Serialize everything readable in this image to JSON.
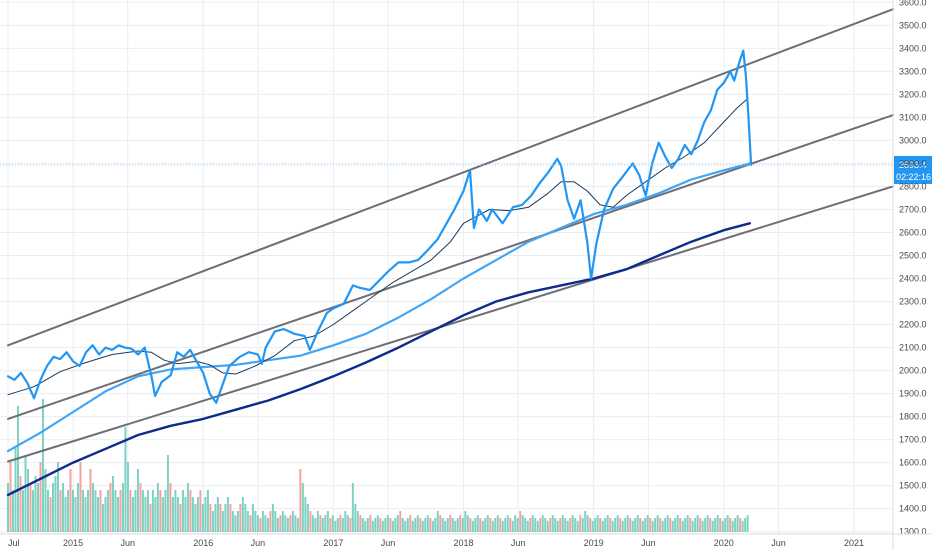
{
  "colors": {
    "background": "#ffffff",
    "grid": "#e9eef3",
    "price_line": "#2196f3",
    "ma_thin": "#1b3a5c",
    "ma_thin_down": "#e05050",
    "ma_mid": "#42a5f5",
    "ma_long": "#0d2a8c",
    "channel": "#6e6e76",
    "volume_up": "#7fd1c4",
    "volume_down": "#f4a39c",
    "last_price_line": "#90caf9",
    "badge": "#2196f3"
  },
  "chart_data": {
    "type": "line",
    "x_axis": {
      "ticks": [
        "Jul",
        "2015",
        "Jun",
        "2016",
        "Jun",
        "2017",
        "Jun",
        "2018",
        "Jun",
        "2019",
        "Jun",
        "2020",
        "Jun",
        "2021"
      ],
      "tick_years": [
        2014.5,
        2015.0,
        2015.42,
        2016.0,
        2016.42,
        2017.0,
        2017.42,
        2018.0,
        2018.42,
        2019.0,
        2019.42,
        2020.0,
        2020.42,
        2021.0
      ]
    },
    "y_axis": {
      "ticks": [
        "1300.0",
        "1400.0",
        "1500.0",
        "1600.0",
        "1700.0",
        "1800.0",
        "1900.0",
        "2000.0",
        "2100.0",
        "2200.0",
        "2300.0",
        "2400.0",
        "2500.0",
        "2600.0",
        "2700.0",
        "2800.0",
        "2900.0",
        "3000.0",
        "3100.0",
        "3200.0",
        "3300.0",
        "3400.0",
        "3500.0",
        "3600.0"
      ],
      "range": [
        1290,
        3610
      ]
    },
    "last_price": {
      "label": "2893.4",
      "value": 2893.4
    },
    "countdown": "02:22:16",
    "series": [
      {
        "role": "price",
        "points": [
          [
            2014.5,
            1975
          ],
          [
            2014.55,
            1960
          ],
          [
            2014.6,
            1990
          ],
          [
            2014.65,
            1945
          ],
          [
            2014.7,
            1880
          ],
          [
            2014.75,
            1960
          ],
          [
            2014.8,
            2020
          ],
          [
            2014.85,
            2060
          ],
          [
            2014.9,
            2050
          ],
          [
            2014.95,
            2080
          ],
          [
            2015.0,
            2040
          ],
          [
            2015.05,
            2020
          ],
          [
            2015.1,
            2080
          ],
          [
            2015.15,
            2110
          ],
          [
            2015.2,
            2070
          ],
          [
            2015.25,
            2100
          ],
          [
            2015.3,
            2090
          ],
          [
            2015.35,
            2110
          ],
          [
            2015.4,
            2100
          ],
          [
            2015.45,
            2095
          ],
          [
            2015.5,
            2070
          ],
          [
            2015.55,
            2100
          ],
          [
            2015.6,
            1980
          ],
          [
            2015.63,
            1890
          ],
          [
            2015.68,
            1950
          ],
          [
            2015.75,
            1980
          ],
          [
            2015.8,
            2080
          ],
          [
            2015.85,
            2060
          ],
          [
            2015.9,
            2090
          ],
          [
            2015.95,
            2040
          ],
          [
            2016.0,
            1990
          ],
          [
            2016.05,
            1900
          ],
          [
            2016.1,
            1860
          ],
          [
            2016.15,
            1940
          ],
          [
            2016.2,
            2020
          ],
          [
            2016.28,
            2060
          ],
          [
            2016.35,
            2080
          ],
          [
            2016.42,
            2070
          ],
          [
            2016.45,
            2030
          ],
          [
            2016.48,
            2100
          ],
          [
            2016.55,
            2170
          ],
          [
            2016.62,
            2180
          ],
          [
            2016.7,
            2160
          ],
          [
            2016.78,
            2150
          ],
          [
            2016.82,
            2090
          ],
          [
            2016.88,
            2170
          ],
          [
            2016.95,
            2250
          ],
          [
            2017.0,
            2270
          ],
          [
            2017.08,
            2290
          ],
          [
            2017.15,
            2370
          ],
          [
            2017.2,
            2360
          ],
          [
            2017.28,
            2350
          ],
          [
            2017.35,
            2390
          ],
          [
            2017.42,
            2430
          ],
          [
            2017.5,
            2470
          ],
          [
            2017.58,
            2470
          ],
          [
            2017.65,
            2480
          ],
          [
            2017.72,
            2520
          ],
          [
            2017.8,
            2570
          ],
          [
            2017.87,
            2640
          ],
          [
            2017.93,
            2700
          ],
          [
            2018.0,
            2780
          ],
          [
            2018.05,
            2870
          ],
          [
            2018.08,
            2620
          ],
          [
            2018.12,
            2700
          ],
          [
            2018.18,
            2650
          ],
          [
            2018.22,
            2700
          ],
          [
            2018.3,
            2640
          ],
          [
            2018.38,
            2710
          ],
          [
            2018.45,
            2720
          ],
          [
            2018.52,
            2760
          ],
          [
            2018.58,
            2810
          ],
          [
            2018.65,
            2860
          ],
          [
            2018.72,
            2920
          ],
          [
            2018.75,
            2890
          ],
          [
            2018.8,
            2740
          ],
          [
            2018.85,
            2660
          ],
          [
            2018.9,
            2740
          ],
          [
            2018.95,
            2560
          ],
          [
            2018.98,
            2400
          ],
          [
            2019.02,
            2550
          ],
          [
            2019.08,
            2700
          ],
          [
            2019.15,
            2790
          ],
          [
            2019.22,
            2840
          ],
          [
            2019.3,
            2900
          ],
          [
            2019.35,
            2850
          ],
          [
            2019.4,
            2760
          ],
          [
            2019.45,
            2900
          ],
          [
            2019.5,
            2990
          ],
          [
            2019.55,
            2930
          ],
          [
            2019.6,
            2880
          ],
          [
            2019.65,
            2920
          ],
          [
            2019.7,
            2980
          ],
          [
            2019.75,
            2940
          ],
          [
            2019.8,
            3000
          ],
          [
            2019.85,
            3080
          ],
          [
            2019.9,
            3130
          ],
          [
            2019.95,
            3220
          ],
          [
            2020.0,
            3250
          ],
          [
            2020.05,
            3300
          ],
          [
            2020.08,
            3260
          ],
          [
            2020.12,
            3340
          ],
          [
            2020.15,
            3390
          ],
          [
            2020.17,
            3280
          ],
          [
            2020.19,
            3100
          ],
          [
            2020.21,
            2893.4
          ]
        ]
      },
      {
        "role": "ma-thin",
        "points": [
          [
            2014.5,
            1895
          ],
          [
            2014.7,
            1930
          ],
          [
            2014.9,
            1995
          ],
          [
            2015.1,
            2035
          ],
          [
            2015.3,
            2070
          ],
          [
            2015.5,
            2085
          ],
          [
            2015.6,
            2080
          ],
          [
            2015.7,
            2045
          ],
          [
            2015.8,
            2030
          ],
          [
            2015.95,
            2040
          ],
          [
            2016.05,
            2025
          ],
          [
            2016.15,
            1990
          ],
          [
            2016.25,
            1985
          ],
          [
            2016.4,
            2020
          ],
          [
            2016.55,
            2065
          ],
          [
            2016.7,
            2130
          ],
          [
            2016.85,
            2150
          ],
          [
            2017.0,
            2200
          ],
          [
            2017.15,
            2260
          ],
          [
            2017.3,
            2320
          ],
          [
            2017.45,
            2380
          ],
          [
            2017.6,
            2430
          ],
          [
            2017.75,
            2480
          ],
          [
            2017.9,
            2560
          ],
          [
            2018.0,
            2640
          ],
          [
            2018.1,
            2670
          ],
          [
            2018.2,
            2700
          ],
          [
            2018.35,
            2695
          ],
          [
            2018.5,
            2710
          ],
          [
            2018.65,
            2770
          ],
          [
            2018.75,
            2820
          ],
          [
            2018.85,
            2820
          ],
          [
            2018.95,
            2780
          ],
          [
            2019.05,
            2720
          ],
          [
            2019.15,
            2710
          ],
          [
            2019.25,
            2760
          ],
          [
            2019.4,
            2820
          ],
          [
            2019.55,
            2880
          ],
          [
            2019.7,
            2930
          ],
          [
            2019.85,
            2990
          ],
          [
            2020.0,
            3080
          ],
          [
            2020.1,
            3140
          ],
          [
            2020.18,
            3180
          ]
        ]
      },
      {
        "role": "ma-mid",
        "points": [
          [
            2014.5,
            1650
          ],
          [
            2014.75,
            1730
          ],
          [
            2015.0,
            1820
          ],
          [
            2015.25,
            1910
          ],
          [
            2015.5,
            1975
          ],
          [
            2015.75,
            2005
          ],
          [
            2016.0,
            2015
          ],
          [
            2016.25,
            2025
          ],
          [
            2016.5,
            2045
          ],
          [
            2016.75,
            2065
          ],
          [
            2017.0,
            2110
          ],
          [
            2017.25,
            2160
          ],
          [
            2017.5,
            2230
          ],
          [
            2017.75,
            2310
          ],
          [
            2018.0,
            2400
          ],
          [
            2018.25,
            2480
          ],
          [
            2018.5,
            2560
          ],
          [
            2018.75,
            2620
          ],
          [
            2019.0,
            2680
          ],
          [
            2019.25,
            2720
          ],
          [
            2019.5,
            2770
          ],
          [
            2019.75,
            2830
          ],
          [
            2020.0,
            2870
          ],
          [
            2020.2,
            2900
          ]
        ]
      },
      {
        "role": "ma-long",
        "points": [
          [
            2014.5,
            1460
          ],
          [
            2014.75,
            1530
          ],
          [
            2015.0,
            1600
          ],
          [
            2015.25,
            1660
          ],
          [
            2015.5,
            1720
          ],
          [
            2015.75,
            1760
          ],
          [
            2016.0,
            1790
          ],
          [
            2016.25,
            1830
          ],
          [
            2016.5,
            1870
          ],
          [
            2016.75,
            1920
          ],
          [
            2017.0,
            1975
          ],
          [
            2017.25,
            2035
          ],
          [
            2017.5,
            2100
          ],
          [
            2017.75,
            2170
          ],
          [
            2018.0,
            2240
          ],
          [
            2018.25,
            2300
          ],
          [
            2018.5,
            2340
          ],
          [
            2018.75,
            2370
          ],
          [
            2019.0,
            2400
          ],
          [
            2019.25,
            2440
          ],
          [
            2019.5,
            2500
          ],
          [
            2019.75,
            2560
          ],
          [
            2020.0,
            2610
          ],
          [
            2020.2,
            2640
          ]
        ]
      },
      {
        "role": "channel-upper",
        "points": [
          [
            2014.5,
            2110
          ],
          [
            2021.3,
            3570
          ]
        ]
      },
      {
        "role": "channel-middle",
        "points": [
          [
            2014.5,
            1790
          ],
          [
            2021.3,
            3110
          ]
        ]
      },
      {
        "role": "channel-lower",
        "points": [
          [
            2014.5,
            1605
          ],
          [
            2021.3,
            2800
          ]
        ]
      }
    ],
    "volume": {
      "x_start": 2014.5,
      "x_step": 0.0192,
      "values": [
        0.35,
        0.5,
        0.3,
        0.6,
        0.9,
        0.4,
        0.3,
        0.55,
        0.45,
        0.35,
        0.3,
        0.4,
        0.35,
        0.5,
        0.95,
        0.45,
        0.3,
        0.25,
        0.35,
        0.4,
        0.5,
        0.3,
        0.35,
        0.25,
        0.3,
        0.45,
        0.3,
        0.25,
        0.35,
        0.5,
        0.3,
        0.25,
        0.3,
        0.45,
        0.35,
        0.3,
        0.25,
        0.3,
        0.2,
        0.25,
        0.3,
        0.35,
        0.4,
        0.3,
        0.25,
        0.3,
        0.35,
        0.75,
        0.5,
        0.3,
        0.25,
        0.3,
        0.45,
        0.35,
        0.3,
        0.25,
        0.3,
        0.2,
        0.3,
        0.25,
        0.35,
        0.3,
        0.25,
        0.3,
        0.55,
        0.35,
        0.25,
        0.3,
        0.25,
        0.2,
        0.3,
        0.25,
        0.35,
        0.3,
        0.25,
        0.2,
        0.25,
        0.3,
        0.2,
        0.25,
        0.3,
        0.2,
        0.15,
        0.2,
        0.25,
        0.2,
        0.15,
        0.2,
        0.25,
        0.2,
        0.15,
        0.12,
        0.15,
        0.2,
        0.25,
        0.2,
        0.15,
        0.12,
        0.2,
        0.15,
        0.12,
        0.1,
        0.15,
        0.12,
        0.1,
        0.15,
        0.2,
        0.15,
        0.1,
        0.12,
        0.15,
        0.12,
        0.1,
        0.12,
        0.15,
        0.12,
        0.1,
        0.45,
        0.35,
        0.25,
        0.2,
        0.15,
        0.12,
        0.1,
        0.15,
        0.12,
        0.1,
        0.12,
        0.15,
        0.1,
        0.12,
        0.08,
        0.1,
        0.12,
        0.1,
        0.15,
        0.12,
        0.1,
        0.35,
        0.2,
        0.15,
        0.12,
        0.1,
        0.08,
        0.1,
        0.12,
        0.08,
        0.1,
        0.12,
        0.1,
        0.08,
        0.1,
        0.12,
        0.1,
        0.08,
        0.1,
        0.12,
        0.15,
        0.1,
        0.08,
        0.1,
        0.12,
        0.08,
        0.1,
        0.12,
        0.1,
        0.08,
        0.1,
        0.12,
        0.1,
        0.08,
        0.1,
        0.15,
        0.12,
        0.1,
        0.08,
        0.1,
        0.12,
        0.1,
        0.08,
        0.1,
        0.12,
        0.1,
        0.15,
        0.12,
        0.1,
        0.08,
        0.1,
        0.12,
        0.1,
        0.08,
        0.1,
        0.12,
        0.1,
        0.08,
        0.1,
        0.12,
        0.1,
        0.08,
        0.1,
        0.12,
        0.1,
        0.08,
        0.12,
        0.1,
        0.15,
        0.12,
        0.1,
        0.08,
        0.1,
        0.12,
        0.1,
        0.08,
        0.1,
        0.12,
        0.1,
        0.08,
        0.1,
        0.12,
        0.1,
        0.08,
        0.1,
        0.12,
        0.1,
        0.08,
        0.1,
        0.12,
        0.1,
        0.08,
        0.12,
        0.1,
        0.15,
        0.12,
        0.1,
        0.08,
        0.1,
        0.12,
        0.1,
        0.08,
        0.1,
        0.12,
        0.1,
        0.08,
        0.1,
        0.12,
        0.1,
        0.08,
        0.1,
        0.12,
        0.1,
        0.08,
        0.1,
        0.12,
        0.1,
        0.08,
        0.1,
        0.12,
        0.1,
        0.08,
        0.1,
        0.12,
        0.1,
        0.08,
        0.1,
        0.12,
        0.1,
        0.08,
        0.1,
        0.12,
        0.1,
        0.08,
        0.1,
        0.12,
        0.1,
        0.08,
        0.1,
        0.12,
        0.1,
        0.08,
        0.1,
        0.12,
        0.1,
        0.08,
        0.1,
        0.12,
        0.1,
        0.08,
        0.1,
        0.12,
        0.1,
        0.08,
        0.1,
        0.12,
        0.1,
        0.08,
        0.1,
        0.12,
        0.1,
        0.08,
        0.1,
        0.12,
        0.1,
        0.08,
        0.1,
        0.12,
        0.1,
        0.08,
        0.1,
        0.12,
        0.1,
        0.08,
        0.1,
        0.12,
        0.1,
        0.08,
        0.1,
        0.12,
        0.1,
        0.08,
        0.1,
        0.12,
        0.1,
        0.08,
        0.1,
        0.12,
        0.1,
        0.08,
        0.1,
        0.12,
        0.1,
        0.08,
        0.1,
        0.12,
        0.1,
        0.08,
        0.1
      ],
      "down_every": 4
    }
  }
}
